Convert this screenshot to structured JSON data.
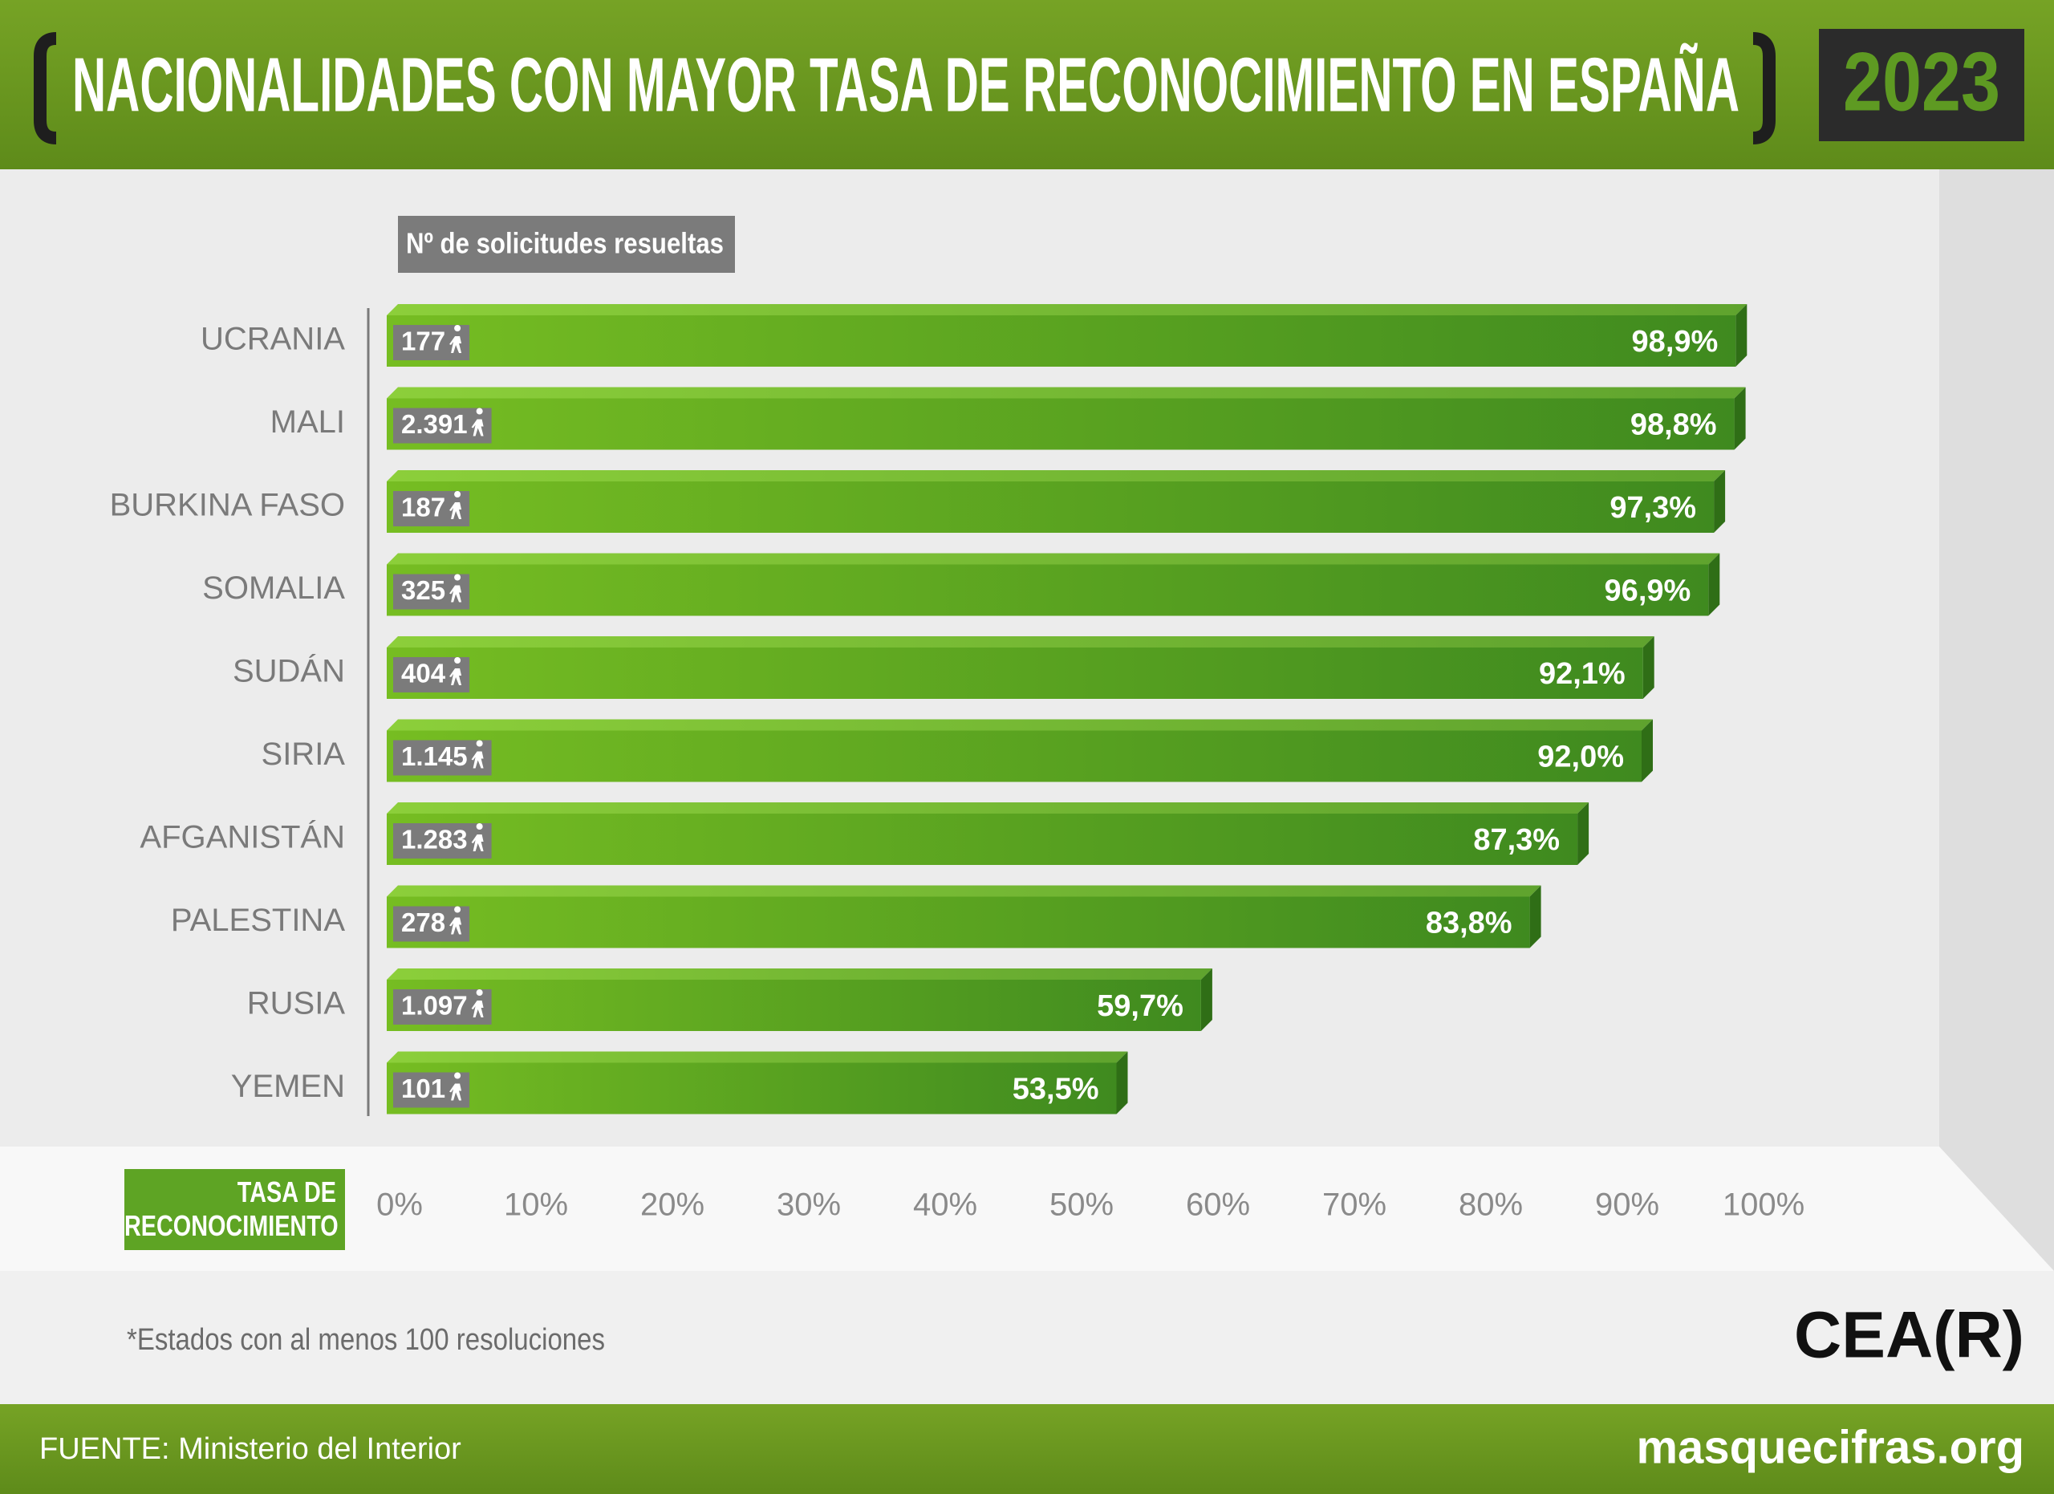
{
  "chart_data": {
    "type": "bar",
    "orientation": "horizontal",
    "title": "NACIONALIDADES CON MAYOR TASA DE RECONOCIMIENTO EN ESPAÑA",
    "year": "2023",
    "categories": [
      "UCRANIA",
      "MALI",
      "BURKINA FASO",
      "SOMALIA",
      "SUDÁN",
      "SIRIA",
      "AFGANISTÁN",
      "PALESTINA",
      "RUSIA",
      "YEMEN"
    ],
    "values": [
      98.9,
      98.8,
      97.3,
      96.9,
      92.1,
      92.0,
      87.3,
      83.8,
      59.7,
      53.5
    ],
    "value_labels": [
      "98,9%",
      "98,8%",
      "97,3%",
      "96,9%",
      "92,1%",
      "92,0%",
      "87,3%",
      "83,8%",
      "59,7%",
      "53,5%"
    ],
    "color": "#4e9a1f",
    "counts": {
      "name": "Nº de solicitudes resueltas",
      "values": [
        177,
        2391,
        187,
        325,
        404,
        1145,
        1283,
        278,
        1097,
        101
      ],
      "value_labels": [
        "177",
        "2.391",
        "187",
        "325",
        "404",
        "1.145",
        "1.283",
        "278",
        "1.097",
        "101"
      ]
    },
    "xlabel": "TASA DE RECONOCIMIENTO",
    "xlim": [
      0,
      100
    ],
    "xticks": [
      {
        "value": 0,
        "label": "0%"
      },
      {
        "value": 10,
        "label": "10%"
      },
      {
        "value": 20,
        "label": "20%"
      },
      {
        "value": 30,
        "label": "30%"
      },
      {
        "value": 40,
        "label": "40%"
      },
      {
        "value": 50,
        "label": "50%"
      },
      {
        "value": 60,
        "label": "60%"
      },
      {
        "value": 70,
        "label": "70%"
      },
      {
        "value": 80,
        "label": "80%"
      },
      {
        "value": 90,
        "label": "90%"
      },
      {
        "value": 100,
        "label": "100%"
      }
    ],
    "note": "*Estados con al menos 100 resoluciones",
    "logo": "CEA(R)",
    "source": "FUENTE: Ministerio del Interior",
    "website": "masquecifras.org"
  }
}
